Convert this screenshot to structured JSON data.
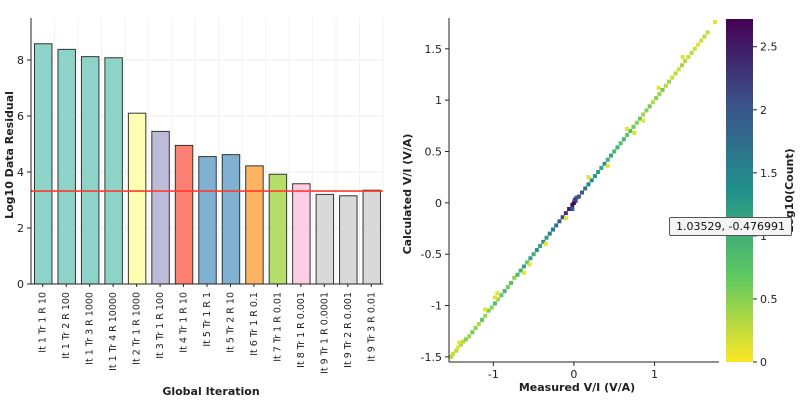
{
  "chart_data": [
    {
      "type": "bar",
      "xlabel": "Global Iteration",
      "ylabel": "Log10 Data Residual",
      "ylim": [
        0,
        9.5
      ],
      "yticks": [
        0,
        2,
        4,
        6,
        8
      ],
      "grid": true,
      "categories": [
        "It 1 Tr 1 R 10",
        "It 1 Tr 2 R 100",
        "It 1 Tr 3 R 1000",
        "It 1 Tr 4 R 10000",
        "It 2 Tr 1 R 1000",
        "It 3 Tr 1 R 100",
        "It 4 Tr 1 R 10",
        "It 5 Tr 1 R 1",
        "It 5 Tr 2 R 10",
        "It 6 Tr 1 R 0.1",
        "It 7 Tr 1 R 0.01",
        "It 8 Tr 1 R 0.001",
        "It 9 Tr 1 R 0.0001",
        "It 9 Tr 2 R 0.001",
        "It 9 Tr 3 R 0.01"
      ],
      "values": [
        8.58,
        8.38,
        8.12,
        8.08,
        6.1,
        5.45,
        4.95,
        4.55,
        4.62,
        4.22,
        3.92,
        3.58,
        3.2,
        3.15,
        3.35
      ],
      "colors": [
        "#8dd3c7",
        "#8dd3c7",
        "#8dd3c7",
        "#8dd3c7",
        "#ffffb3",
        "#bebada",
        "#fb8072",
        "#80b1d3",
        "#80b1d3",
        "#fdb462",
        "#b3de69",
        "#fccde5",
        "#d9d9d9",
        "#d9d9d9",
        "#d9d9d9"
      ],
      "reference_line": {
        "value": 3.32,
        "color": "#ff3b2f"
      }
    },
    {
      "type": "heatmap",
      "xlabel": "Measured V/I (V/A)",
      "ylabel": "Calculated V/I (V/A)",
      "xlim": [
        -1.55,
        1.8
      ],
      "ylim": [
        -1.55,
        1.8
      ],
      "xticks": [
        -1,
        0,
        1
      ],
      "yticks": [
        -1.5,
        -1,
        -0.5,
        0,
        0.5,
        1,
        1.5
      ],
      "colorbar": {
        "label": "Log10(Count)",
        "range": [
          0,
          2.72
        ],
        "ticks": [
          0,
          0.5,
          1,
          1.5,
          2,
          2.5
        ],
        "colormap": "viridis_r"
      },
      "x": [
        -1.52,
        -1.5,
        -1.46,
        -1.44,
        -1.4,
        -1.37,
        -1.34,
        -1.3,
        -1.26,
        -1.22,
        -1.18,
        -1.14,
        -1.1,
        -1.06,
        -1.02,
        -0.98,
        -0.94,
        -0.9,
        -0.86,
        -0.82,
        -0.78,
        -0.74,
        -0.7,
        -0.66,
        -0.62,
        -0.58,
        -0.54,
        -0.5,
        -0.46,
        -0.42,
        -0.38,
        -0.34,
        -0.3,
        -0.26,
        -0.22,
        -0.18,
        -0.14,
        -0.1,
        -0.06,
        -0.02,
        0.0,
        0.02,
        0.06,
        0.1,
        0.14,
        0.18,
        0.22,
        0.26,
        0.3,
        0.34,
        0.38,
        0.42,
        0.46,
        0.5,
        0.54,
        0.58,
        0.62,
        0.66,
        0.7,
        0.74,
        0.78,
        0.82,
        0.86,
        0.9,
        0.94,
        0.98,
        1.02,
        1.06,
        1.1,
        1.14,
        1.18,
        1.22,
        1.26,
        1.3,
        1.34,
        1.38,
        1.42,
        1.46,
        1.5,
        1.54,
        1.58,
        1.62,
        1.66,
        1.75,
        -1.42,
        -1.1,
        -0.95,
        -0.62,
        -0.35,
        -0.1,
        0.18,
        0.42,
        0.66,
        0.86,
        1.05,
        1.35,
        -0.98,
        -0.55,
        0.75,
        -0.02,
        0.03,
        0.01
      ],
      "y": [
        -1.5,
        -1.47,
        -1.44,
        -1.41,
        -1.38,
        -1.35,
        -1.33,
        -1.3,
        -1.26,
        -1.22,
        -1.18,
        -1.14,
        -1.1,
        -1.05,
        -1.02,
        -0.98,
        -0.94,
        -0.9,
        -0.86,
        -0.82,
        -0.78,
        -0.73,
        -0.7,
        -0.66,
        -0.62,
        -0.58,
        -0.54,
        -0.5,
        -0.46,
        -0.42,
        -0.38,
        -0.34,
        -0.3,
        -0.26,
        -0.22,
        -0.18,
        -0.14,
        -0.1,
        -0.06,
        -0.02,
        0.0,
        0.02,
        0.06,
        0.1,
        0.14,
        0.18,
        0.22,
        0.26,
        0.3,
        0.34,
        0.38,
        0.42,
        0.46,
        0.5,
        0.54,
        0.58,
        0.62,
        0.66,
        0.7,
        0.74,
        0.78,
        0.82,
        0.86,
        0.9,
        0.94,
        0.98,
        1.02,
        1.06,
        1.1,
        1.14,
        1.18,
        1.22,
        1.26,
        1.3,
        1.34,
        1.38,
        1.42,
        1.46,
        1.5,
        1.54,
        1.58,
        1.62,
        1.66,
        1.76,
        -1.36,
        -1.04,
        -0.88,
        -0.68,
        -0.4,
        -0.15,
        0.25,
        0.36,
        0.72,
        0.8,
        1.12,
        1.42,
        -0.92,
        -0.6,
        0.68,
        -0.06,
        0.05,
        0.03
      ],
      "counts": [
        0.3,
        0.2,
        0.3,
        0.1,
        0.4,
        0.3,
        0.5,
        0.4,
        0.6,
        0.5,
        0.3,
        0.7,
        0.4,
        0.6,
        0.5,
        0.8,
        0.4,
        0.7,
        0.9,
        0.6,
        0.8,
        0.5,
        0.9,
        1.0,
        1.1,
        0.8,
        1.2,
        1.0,
        1.3,
        1.1,
        1.4,
        1.2,
        1.5,
        1.6,
        1.7,
        1.9,
        2.1,
        2.3,
        2.5,
        2.6,
        2.72,
        2.4,
        2.2,
        1.9,
        1.7,
        1.5,
        1.4,
        1.3,
        1.2,
        1.1,
        1.3,
        1.0,
        1.1,
        0.9,
        1.0,
        0.8,
        0.9,
        0.7,
        0.8,
        0.6,
        0.5,
        0.7,
        0.4,
        0.5,
        0.6,
        0.3,
        0.5,
        0.4,
        0.6,
        0.3,
        0.4,
        0.2,
        0.3,
        0.2,
        0.4,
        0.3,
        0.2,
        0.3,
        0.2,
        0.1,
        0.2,
        0.3,
        0.2,
        0.1,
        0.1,
        0.1,
        0.1,
        0.1,
        0.1,
        0.1,
        0.1,
        0.1,
        0.1,
        0.1,
        0.1,
        0.1,
        0.1,
        0.1,
        0.1,
        2.0,
        1.8,
        2.2
      ]
    }
  ],
  "tooltip": {
    "text": "1.03529, -0.476991"
  }
}
